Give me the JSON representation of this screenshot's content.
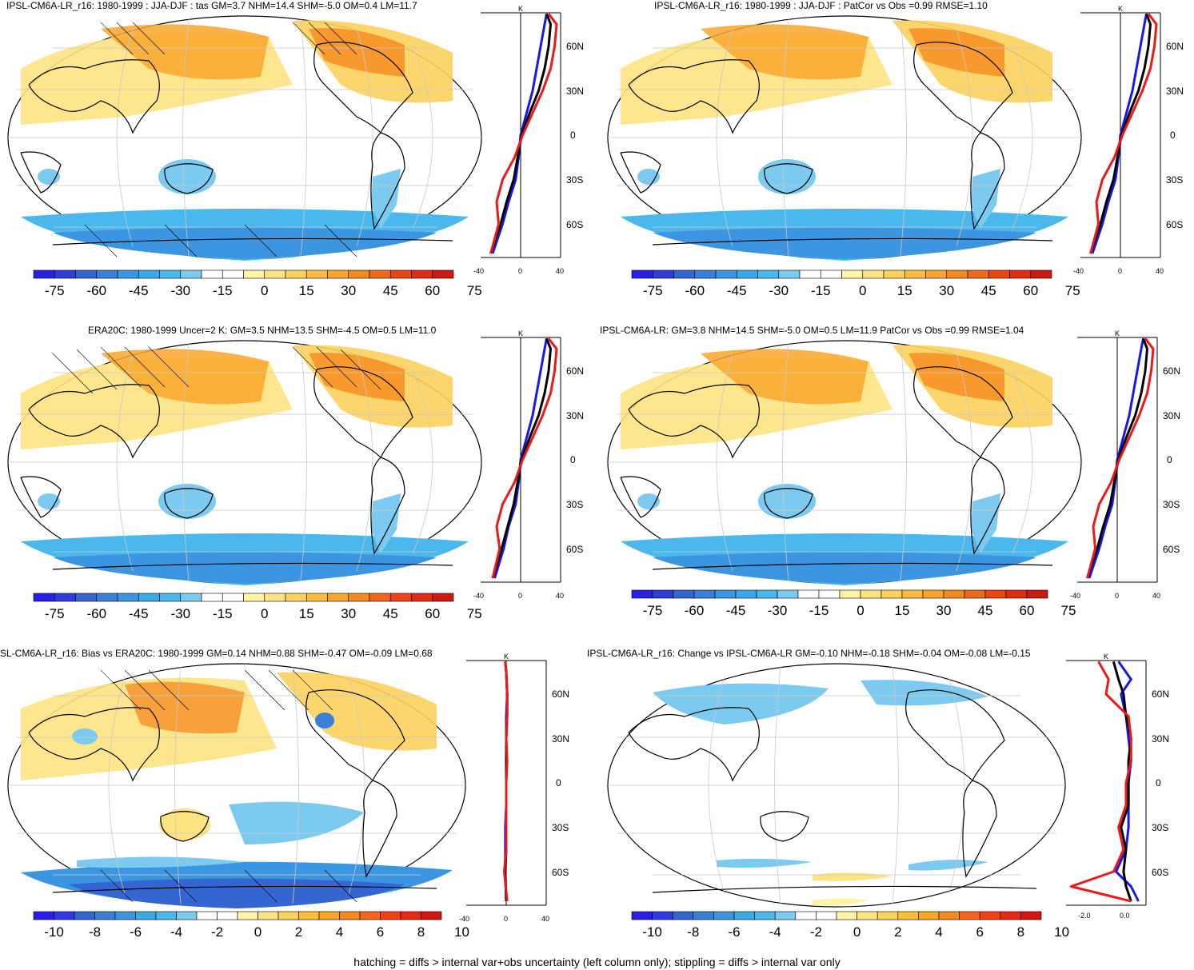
{
  "footnote": "hatching = diffs > internal var+obs uncertainty (left column only); stippling = diffs > internal var only",
  "profile_unit": "K",
  "lat_labels": [
    "60N",
    "30N",
    "0",
    "30S",
    "60S"
  ],
  "colorbar_colors": [
    "#2a1fe6",
    "#2f3bdc",
    "#3466d2",
    "#3a80d8",
    "#3c95e0",
    "#39a9e8",
    "#4ab8ec",
    "#7ccaf0",
    "#ffffff",
    "#ffffff",
    "#fff3a6",
    "#fde381",
    "#fcd15c",
    "#fbbd3b",
    "#f9a62a",
    "#f68a1f",
    "#f2671a",
    "#ee4414",
    "#e32a12",
    "#d11810"
  ],
  "chart_data": [
    {
      "type": "map+profile",
      "id": "p1",
      "title": "IPSL-CM6A-LR_r16: 1980-1999 : JJA-DJF : tas GM=3.7 NHM=14.4 SHM=-5.0 OM=0.4 LM=11.7",
      "colorbar_ticks": [
        "-75",
        "-60",
        "-45",
        "-30",
        "-15",
        "0",
        "15",
        "30",
        "45",
        "60",
        "75"
      ],
      "profile_xticks": [
        "-40",
        "0",
        "40"
      ],
      "profile_xlim": [
        -40,
        40
      ],
      "series": [
        {
          "name": "blue",
          "color": "#1818ee",
          "lat": [
            -80,
            -60,
            -45,
            -30,
            -15,
            0,
            15,
            30,
            45,
            60,
            75,
            82
          ],
          "value": [
            -28,
            -18,
            -12,
            -5,
            -2,
            0,
            6,
            12,
            16,
            20,
            24,
            26
          ]
        },
        {
          "name": "black",
          "color": "#000000",
          "lat": [
            -80,
            -60,
            -45,
            -30,
            -15,
            0,
            15,
            30,
            45,
            60,
            75,
            82
          ],
          "value": [
            -30,
            -20,
            -14,
            -7,
            -3,
            1,
            9,
            18,
            24,
            28,
            30,
            26
          ]
        },
        {
          "name": "red",
          "color": "#ee1818",
          "lat": [
            -80,
            -60,
            -45,
            -30,
            -15,
            0,
            15,
            30,
            45,
            60,
            75,
            82
          ],
          "value": [
            -30,
            -22,
            -24,
            -18,
            -6,
            2,
            12,
            22,
            30,
            34,
            36,
            28
          ]
        }
      ]
    },
    {
      "type": "map+profile",
      "id": "p2",
      "title": "IPSL-CM6A-LR_r16: 1980-1999 : JJA-DJF : PatCor vs Obs =0.99 RMSE=1.10",
      "colorbar_ticks": [
        "-75",
        "-60",
        "-45",
        "-30",
        "-15",
        "0",
        "15",
        "30",
        "45",
        "60",
        "75"
      ],
      "profile_xticks": [
        "-40",
        "0",
        "40"
      ],
      "profile_xlim": [
        -40,
        40
      ],
      "series": [
        {
          "name": "blue",
          "color": "#1818ee",
          "lat": [
            -80,
            -60,
            -45,
            -30,
            -15,
            0,
            15,
            30,
            45,
            60,
            75,
            82
          ],
          "value": [
            -28,
            -18,
            -12,
            -5,
            -2,
            0,
            6,
            12,
            16,
            20,
            24,
            26
          ]
        },
        {
          "name": "black",
          "color": "#000000",
          "lat": [
            -80,
            -60,
            -45,
            -30,
            -15,
            0,
            15,
            30,
            45,
            60,
            75,
            82
          ],
          "value": [
            -30,
            -20,
            -14,
            -7,
            -3,
            1,
            9,
            18,
            24,
            28,
            30,
            26
          ]
        },
        {
          "name": "red",
          "color": "#ee1818",
          "lat": [
            -80,
            -60,
            -45,
            -30,
            -15,
            0,
            15,
            30,
            45,
            60,
            75,
            82
          ],
          "value": [
            -30,
            -22,
            -24,
            -18,
            -6,
            2,
            12,
            22,
            30,
            34,
            36,
            28
          ]
        }
      ]
    },
    {
      "type": "map+profile",
      "id": "p3",
      "title": "ERA20C: 1980-1999 Uncer=2 K: GM=3.5 NHM=13.5 SHM=-4.5 OM=0.5 LM=11.0",
      "colorbar_ticks": [
        "-75",
        "-60",
        "-45",
        "-30",
        "-15",
        "0",
        "15",
        "30",
        "45",
        "60",
        "75"
      ],
      "profile_xticks": [
        "-40",
        "0",
        "40"
      ],
      "profile_xlim": [
        -40,
        40
      ],
      "series": [
        {
          "name": "blue",
          "color": "#1818ee",
          "lat": [
            -80,
            -60,
            -45,
            -30,
            -15,
            0,
            15,
            30,
            45,
            60,
            75,
            82
          ],
          "value": [
            -26,
            -17,
            -12,
            -5,
            -2,
            0,
            6,
            12,
            16,
            20,
            24,
            26
          ]
        },
        {
          "name": "black",
          "color": "#000000",
          "lat": [
            -80,
            -60,
            -45,
            -30,
            -15,
            0,
            15,
            30,
            45,
            60,
            75,
            82
          ],
          "value": [
            -28,
            -19,
            -13,
            -7,
            -3,
            1,
            9,
            18,
            24,
            28,
            30,
            26
          ]
        },
        {
          "name": "red",
          "color": "#ee1818",
          "lat": [
            -80,
            -60,
            -45,
            -30,
            -15,
            0,
            15,
            30,
            45,
            60,
            75,
            82
          ],
          "value": [
            -28,
            -21,
            -24,
            -18,
            -6,
            2,
            12,
            22,
            30,
            34,
            36,
            28
          ]
        }
      ]
    },
    {
      "type": "map+profile",
      "id": "p4",
      "title": "IPSL-CM6A-LR: GM=3.8 NHM=14.5 SHM=-5.0 OM=0.5 LM=11.9 PatCor vs Obs =0.99 RMSE=1.04",
      "colorbar_ticks": [
        "-75",
        "-60",
        "-45",
        "-30",
        "-15",
        "0",
        "15",
        "30",
        "45",
        "60",
        "75"
      ],
      "profile_xticks": [
        "-40",
        "0",
        "40"
      ],
      "profile_xlim": [
        -40,
        40
      ],
      "series": [
        {
          "name": "blue",
          "color": "#1818ee",
          "lat": [
            -80,
            -60,
            -45,
            -30,
            -15,
            0,
            15,
            30,
            45,
            60,
            75,
            82
          ],
          "value": [
            -28,
            -18,
            -12,
            -5,
            -2,
            0,
            6,
            12,
            16,
            20,
            24,
            26
          ]
        },
        {
          "name": "black",
          "color": "#000000",
          "lat": [
            -80,
            -60,
            -45,
            -30,
            -15,
            0,
            15,
            30,
            45,
            60,
            75,
            82
          ],
          "value": [
            -30,
            -20,
            -14,
            -7,
            -3,
            1,
            9,
            18,
            24,
            28,
            30,
            26
          ]
        },
        {
          "name": "red",
          "color": "#ee1818",
          "lat": [
            -80,
            -60,
            -45,
            -30,
            -15,
            0,
            15,
            30,
            45,
            60,
            75,
            82
          ],
          "value": [
            -30,
            -22,
            -24,
            -18,
            -6,
            2,
            12,
            22,
            30,
            34,
            36,
            28
          ]
        }
      ]
    },
    {
      "type": "map+profile",
      "id": "p5",
      "title": "SL-CM6A-LR_r16: Bias vs ERA20C: 1980-1999 GM=0.14 NHM=0.88 SHM=-0.47 OM=-0.09 LM=0.68",
      "colorbar_ticks": [
        "-10",
        "-8",
        "-6",
        "-4",
        "-2",
        "0",
        "2",
        "4",
        "6",
        "8",
        "10"
      ],
      "profile_xticks": [
        "-40",
        "0",
        "40"
      ],
      "profile_xlim": [
        -40,
        40
      ],
      "series": [
        {
          "name": "blue",
          "color": "#1818ee",
          "lat": [
            -80,
            -60,
            -45,
            -30,
            -15,
            0,
            15,
            30,
            45,
            60,
            75,
            82
          ],
          "value": [
            0,
            -1,
            -1,
            -1,
            0,
            0,
            0,
            0,
            0,
            1,
            0,
            -1
          ]
        },
        {
          "name": "black",
          "color": "#000000",
          "lat": [
            -80,
            -60,
            -45,
            -30,
            -15,
            0,
            15,
            30,
            45,
            60,
            75,
            82
          ],
          "value": [
            0,
            -1,
            0,
            0,
            0,
            0,
            0,
            0,
            1,
            1,
            0,
            -1
          ]
        },
        {
          "name": "red",
          "color": "#ee1818",
          "lat": [
            -80,
            -60,
            -45,
            -30,
            -15,
            0,
            15,
            30,
            45,
            60,
            75,
            82
          ],
          "value": [
            1,
            -2,
            0,
            0,
            0,
            0,
            1,
            0,
            1,
            1,
            0,
            -1
          ]
        }
      ]
    },
    {
      "type": "map+profile",
      "id": "p6",
      "title": "IPSL-CM6A-LR_r16: Change vs IPSL-CM6A-LR GM=-0.10 NHM=-0.18 SHM=-0.04 OM=-0.08 LM=-0.15",
      "colorbar_ticks": [
        "-10",
        "-8",
        "-6",
        "-4",
        "-2",
        "0",
        "2",
        "4",
        "6",
        "8",
        "10"
      ],
      "profile_xticks": [
        "-2.0",
        "0.0"
      ],
      "profile_xlim": [
        -2.6,
        0.6
      ],
      "series": [
        {
          "name": "blue",
          "color": "#1818ee",
          "lat": [
            -80,
            -70,
            -60,
            -45,
            -30,
            -15,
            0,
            15,
            30,
            45,
            60,
            70,
            82
          ],
          "value": [
            0.3,
            0.0,
            -0.6,
            -0.2,
            -0.1,
            -0.1,
            -0.1,
            0.0,
            -0.1,
            -0.2,
            -0.4,
            0.0,
            -0.5
          ]
        },
        {
          "name": "black",
          "color": "#000000",
          "lat": [
            -80,
            -70,
            -60,
            -45,
            -30,
            -15,
            0,
            15,
            30,
            45,
            60,
            70,
            82
          ],
          "value": [
            0.0,
            -0.2,
            -0.3,
            -0.2,
            -0.4,
            -0.1,
            -0.1,
            -0.1,
            0.0,
            -0.2,
            -0.3,
            -0.5,
            -0.7
          ]
        },
        {
          "name": "red",
          "color": "#ee1818",
          "lat": [
            -80,
            -70,
            -60,
            -45,
            -30,
            -15,
            0,
            15,
            30,
            45,
            60,
            70,
            82
          ],
          "value": [
            0.0,
            -2.4,
            -0.7,
            -0.3,
            -0.5,
            -0.2,
            -0.2,
            0.0,
            0.0,
            -0.1,
            -1.0,
            -0.9,
            -1.3
          ]
        }
      ]
    }
  ]
}
